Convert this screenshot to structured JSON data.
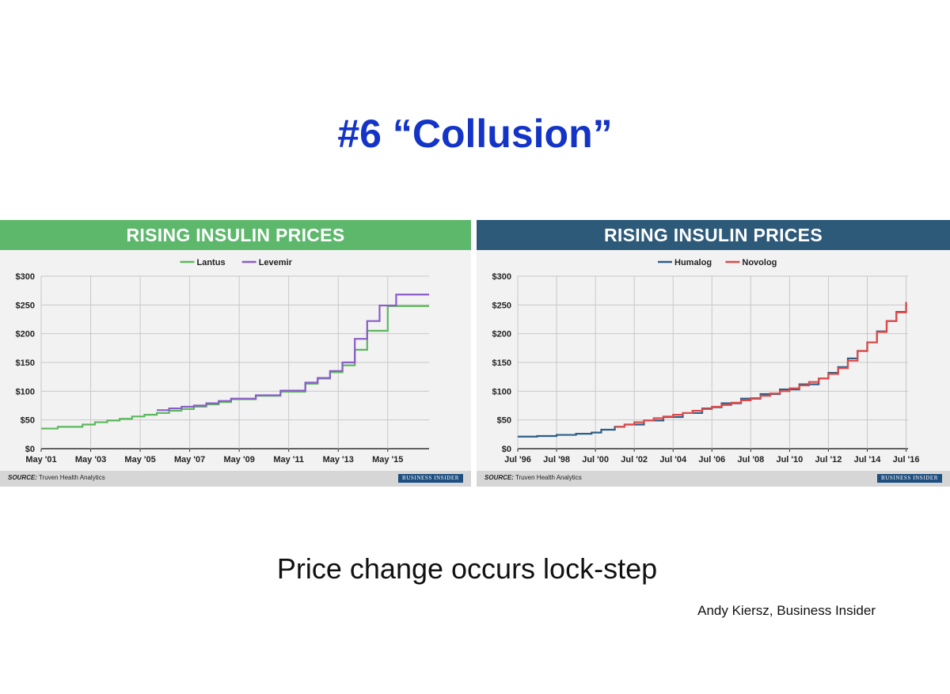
{
  "slide": {
    "title": "#6 “Collusion”",
    "caption": "Price change occurs lock-step",
    "credit": "Andy Kiersz, Business Insider"
  },
  "chart_data": [
    {
      "type": "line",
      "step": true,
      "title": "RISING INSULIN PRICES",
      "header_color": "#5db86c",
      "source_label": "SOURCE:",
      "source_text": "Truven Health Analytics",
      "brand": "BUSINESS INSIDER",
      "ylim": [
        0,
        300
      ],
      "yticks": [
        0,
        50,
        100,
        150,
        200,
        250,
        300
      ],
      "ytick_labels": [
        "$0",
        "$50",
        "$100",
        "$150",
        "$200",
        "$250",
        "$300"
      ],
      "xlim": [
        2001.33,
        2017.0
      ],
      "xticks": [
        2001.33,
        2003.33,
        2005.33,
        2007.33,
        2009.33,
        2011.33,
        2013.33,
        2015.33
      ],
      "xtick_labels": [
        "May '01",
        "May '03",
        "May '05",
        "May '07",
        "May '09",
        "May '11",
        "May '13",
        "May '15"
      ],
      "grid": true,
      "legend": "top-center",
      "series": [
        {
          "name": "Lantus",
          "color": "#5cb85c",
          "x": [
            2001.33,
            2002.0,
            2003.0,
            2003.5,
            2004.0,
            2004.5,
            2005.0,
            2005.5,
            2006.0,
            2006.5,
            2007.0,
            2007.5,
            2008.0,
            2008.5,
            2009.0,
            2010.0,
            2011.0,
            2012.0,
            2012.5,
            2013.0,
            2013.5,
            2014.0,
            2014.5,
            2015.33,
            2017.0
          ],
          "y": [
            35,
            38,
            42,
            46,
            49,
            52,
            56,
            59,
            62,
            66,
            69,
            73,
            77,
            81,
            86,
            92,
            99,
            113,
            122,
            133,
            145,
            172,
            205,
            248,
            248
          ]
        },
        {
          "name": "Levemir",
          "color": "#8a5cc9",
          "x": [
            2006.0,
            2006.5,
            2007.0,
            2007.5,
            2008.0,
            2008.5,
            2009.0,
            2010.0,
            2011.0,
            2012.0,
            2012.5,
            2013.0,
            2013.5,
            2014.0,
            2014.5,
            2015.0,
            2015.67,
            2017.0
          ],
          "y": [
            67,
            70,
            73,
            75,
            79,
            83,
            87,
            93,
            101,
            115,
            123,
            135,
            150,
            191,
            222,
            249,
            268,
            268
          ]
        }
      ]
    },
    {
      "type": "line",
      "step": true,
      "title": "RISING INSULIN PRICES",
      "header_color": "#2e5a7a",
      "source_label": "SOURCE:",
      "source_text": "Truven Health Analytics",
      "brand": "BUSINESS INSIDER",
      "ylim": [
        0,
        300
      ],
      "yticks": [
        0,
        50,
        100,
        150,
        200,
        250,
        300
      ],
      "ytick_labels": [
        "$0",
        "$50",
        "$100",
        "$150",
        "$200",
        "$250",
        "$300"
      ],
      "xlim": [
        1996.5,
        2016.6
      ],
      "xticks": [
        1996.5,
        1998.5,
        2000.5,
        2002.5,
        2004.5,
        2006.5,
        2008.5,
        2010.5,
        2012.5,
        2014.5,
        2016.5
      ],
      "xtick_labels": [
        "Jul '96",
        "Jul '98",
        "Jul '00",
        "Jul '02",
        "Jul '04",
        "Jul '06",
        "Jul '08",
        "Jul '10",
        "Jul '12",
        "Jul '14",
        "Jul '16"
      ],
      "grid": true,
      "legend": "top-center",
      "series": [
        {
          "name": "Humalog",
          "color": "#2c5f86",
          "x": [
            1996.5,
            1997.5,
            1998.5,
            1999.5,
            2000.3,
            2000.8,
            2001.5,
            2002.0,
            2003.0,
            2004.0,
            2005.0,
            2006.0,
            2006.5,
            2007.0,
            2008.0,
            2009.0,
            2010.0,
            2011.0,
            2012.0,
            2012.5,
            2013.0,
            2013.5,
            2014.0,
            2014.5,
            2015.0,
            2015.5,
            2016.0,
            2016.5
          ],
          "y": [
            21,
            22,
            24,
            26,
            28,
            33,
            38,
            42,
            49,
            55,
            62,
            70,
            72,
            79,
            87,
            95,
            103,
            112,
            122,
            132,
            142,
            157,
            170,
            185,
            204,
            222,
            238,
            255
          ]
        },
        {
          "name": "Novolog",
          "color": "#e04848",
          "x": [
            2001.5,
            2002.0,
            2002.5,
            2003.0,
            2003.5,
            2004.0,
            2004.5,
            2005.0,
            2005.5,
            2006.0,
            2006.5,
            2007.0,
            2007.5,
            2008.0,
            2008.5,
            2009.0,
            2009.5,
            2010.0,
            2010.5,
            2011.0,
            2011.5,
            2012.0,
            2012.5,
            2013.0,
            2013.5,
            2014.0,
            2014.5,
            2015.0,
            2015.5,
            2016.0,
            2016.5
          ],
          "y": [
            38,
            42,
            46,
            49,
            53,
            56,
            59,
            62,
            66,
            69,
            73,
            76,
            80,
            84,
            88,
            92,
            96,
            100,
            105,
            110,
            116,
            122,
            130,
            140,
            153,
            170,
            185,
            203,
            222,
            237,
            255
          ]
        }
      ]
    }
  ]
}
